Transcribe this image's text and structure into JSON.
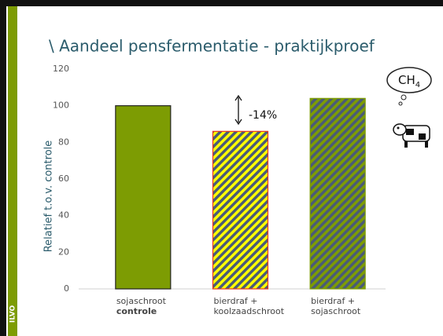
{
  "chart_data": {
    "type": "bar",
    "title": "\\ Aandeel pensfermentatie - praktijkproef",
    "ylabel": "Relatief t.o.v. controle",
    "categories": [
      [
        "sojaschroot",
        "controle"
      ],
      [
        "bierdraf +",
        "koolzaadschroot"
      ],
      [
        "bierdraf +",
        "sojaschroot"
      ]
    ],
    "values": [
      100,
      86,
      104
    ],
    "colors": [
      "#7d9c03",
      "#ffff00",
      "#7d9c03"
    ],
    "stripe_colors": [
      null,
      "#4a5b78",
      "#4a5b78"
    ],
    "edge_colors": [
      "#222222",
      "#e8361e",
      "#7d9c03"
    ],
    "ylim": [
      0,
      120
    ],
    "yticks": [
      0,
      20,
      40,
      60,
      80,
      100,
      120
    ],
    "annotation": "-14%",
    "bubble": {
      "text": "CH",
      "sub": "4"
    },
    "logo": "ILVO"
  }
}
